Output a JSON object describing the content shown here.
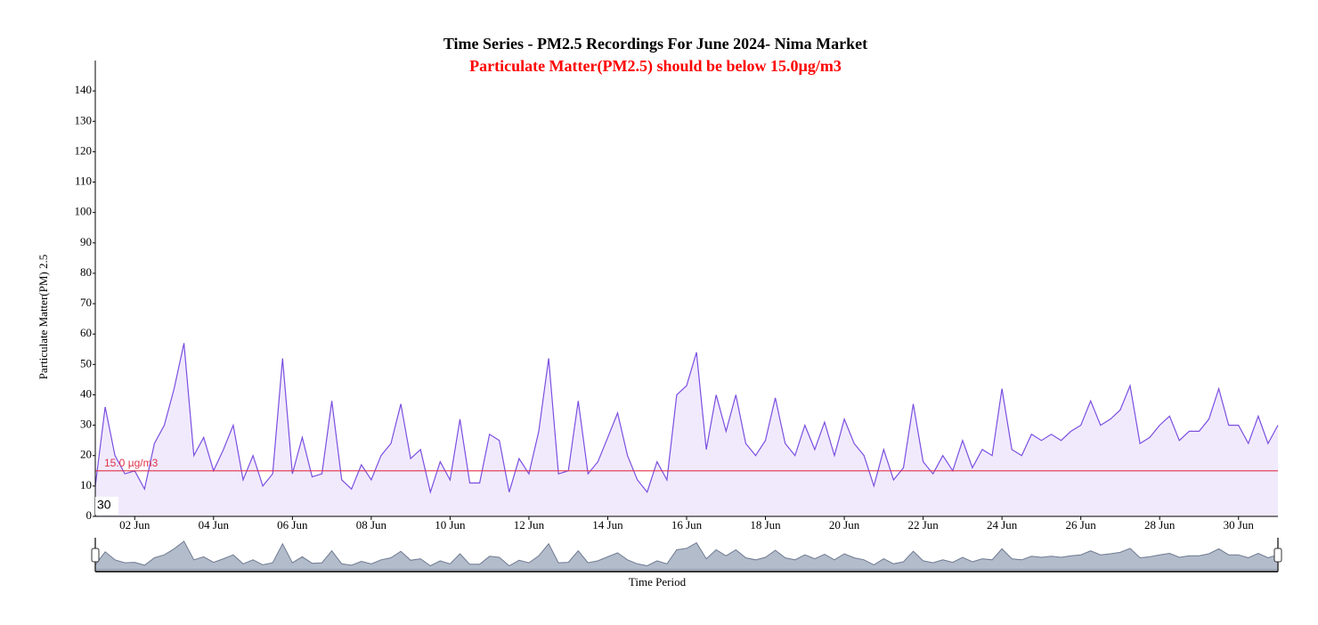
{
  "chart_data": {
    "type": "line",
    "title": "Time Series - PM2.5 Recordings For June 2024- Nima Market",
    "subtitle": "Particulate Matter(PM2.5) should be below 15.0µg/m3",
    "y_axis_label": "Particulate Matter(PM) 2.5",
    "x_axis_label": "Time Period",
    "range_label": "30",
    "threshold": {
      "value": 15,
      "label": "15.0 µg/m3",
      "color": "#e0334a"
    },
    "xlim": [
      1,
      31
    ],
    "xticks": [
      {
        "value": 2,
        "label": "02 Jun"
      },
      {
        "value": 4,
        "label": "04 Jun"
      },
      {
        "value": 6,
        "label": "06 Jun"
      },
      {
        "value": 8,
        "label": "08 Jun"
      },
      {
        "value": 10,
        "label": "10 Jun"
      },
      {
        "value": 12,
        "label": "12 Jun"
      },
      {
        "value": 14,
        "label": "14 Jun"
      },
      {
        "value": 16,
        "label": "16 Jun"
      },
      {
        "value": 18,
        "label": "18 Jun"
      },
      {
        "value": 20,
        "label": "20 Jun"
      },
      {
        "value": 22,
        "label": "22 Jun"
      },
      {
        "value": 24,
        "label": "24 Jun"
      },
      {
        "value": 26,
        "label": "26 Jun"
      },
      {
        "value": 28,
        "label": "28 Jun"
      },
      {
        "value": 30,
        "label": "30 Jun"
      }
    ],
    "ylim": [
      0,
      150
    ],
    "yticks": [
      0,
      10,
      20,
      30,
      40,
      50,
      60,
      70,
      80,
      90,
      100,
      110,
      120,
      130,
      140
    ],
    "grid": false,
    "series": [
      {
        "name": "PM2.5",
        "color": "#7b4fe0",
        "fill": "#f1eafd",
        "x": [
          1,
          1.25,
          1.5,
          1.75,
          2,
          2.25,
          2.5,
          2.75,
          3,
          3.25,
          3.5,
          3.75,
          4,
          4.25,
          4.5,
          4.75,
          5,
          5.25,
          5.5,
          5.75,
          6,
          6.25,
          6.5,
          6.75,
          7,
          7.25,
          7.5,
          7.75,
          8,
          8.25,
          8.5,
          8.75,
          9,
          9.25,
          9.5,
          9.75,
          10,
          10.25,
          10.5,
          10.75,
          11,
          11.25,
          11.5,
          11.75,
          12,
          12.25,
          12.5,
          12.75,
          13,
          13.25,
          13.5,
          13.75,
          14,
          14.25,
          14.5,
          14.75,
          15,
          15.25,
          15.5,
          15.75,
          16,
          16.25,
          16.5,
          16.75,
          17,
          17.25,
          17.5,
          17.75,
          18,
          18.25,
          18.5,
          18.75,
          19,
          19.25,
          19.5,
          19.75,
          20,
          20.25,
          20.5,
          20.75,
          21,
          21.25,
          21.5,
          21.75,
          22,
          22.25,
          22.5,
          22.75,
          23,
          23.25,
          23.5,
          23.75,
          24,
          24.25,
          24.5,
          24.75,
          25,
          25.25,
          25.5,
          25.75,
          26,
          26.25,
          26.5,
          26.75,
          27,
          27.25,
          27.5,
          27.75,
          28,
          28.25,
          28.5,
          28.75,
          29,
          29.25,
          29.5,
          29.75,
          30,
          30.25,
          30.5,
          30.75,
          31
        ],
        "values": [
          10,
          36,
          20,
          14,
          15,
          9,
          24,
          30,
          42,
          57,
          20,
          26,
          15,
          22,
          30,
          12,
          20,
          10,
          14,
          52,
          14,
          26,
          13,
          14,
          38,
          12,
          9,
          17,
          12,
          20,
          24,
          37,
          19,
          22,
          8,
          18,
          12,
          32,
          11,
          11,
          27,
          25,
          8,
          19,
          14,
          28,
          52,
          14,
          15,
          38,
          14,
          18,
          26,
          34,
          20,
          12,
          8,
          18,
          12,
          40,
          43,
          54,
          22,
          40,
          28,
          40,
          24,
          20,
          25,
          39,
          24,
          20,
          30,
          22,
          31,
          20,
          32,
          24,
          20,
          10,
          22,
          12,
          16,
          37,
          18,
          14,
          20,
          15,
          25,
          16,
          22,
          20,
          42,
          22,
          20,
          27,
          25,
          27,
          25,
          28,
          30,
          38,
          30,
          32,
          35,
          43,
          24,
          26,
          30,
          33,
          25,
          28,
          28,
          32,
          42,
          30,
          30,
          24,
          33,
          24,
          30
        ]
      }
    ]
  }
}
